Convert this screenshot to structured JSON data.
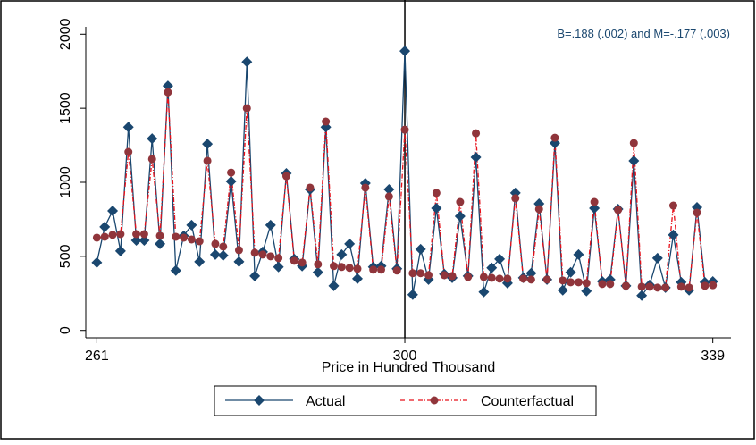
{
  "chart_data": {
    "type": "line",
    "annotation": "B=.188 (.002) and M=-.177 (.003)",
    "x_label": "Price in Hundred Thousand",
    "x": [
      261,
      262,
      263,
      264,
      265,
      266,
      267,
      268,
      269,
      270,
      271,
      272,
      273,
      274,
      275,
      276,
      277,
      278,
      279,
      280,
      281,
      282,
      283,
      284,
      285,
      286,
      287,
      288,
      289,
      290,
      291,
      292,
      293,
      294,
      295,
      296,
      297,
      298,
      299,
      300,
      301,
      302,
      303,
      304,
      305,
      306,
      307,
      308,
      309,
      310,
      311,
      312,
      313,
      314,
      315,
      316,
      317,
      318,
      319,
      320,
      321,
      322,
      323,
      324,
      325,
      326,
      327,
      328,
      329,
      330,
      331,
      332,
      333,
      334,
      335,
      336,
      337,
      338,
      339
    ],
    "series": [
      {
        "name": "Actual",
        "color": "#1a476f",
        "marker": "diamond",
        "dash": "none",
        "values": [
          458,
          699,
          807,
          536,
          1373,
          608,
          608,
          1295,
          584,
          1651,
          404,
          639,
          711,
          464,
          1259,
          512,
          506,
          1006,
          464,
          1813,
          367,
          530,
          711,
          428,
          1060,
          482,
          434,
          952,
          392,
          1373,
          301,
          512,
          584,
          349,
          994,
          428,
          434,
          952,
          416,
          1886,
          241,
          548,
          343,
          825,
          380,
          355,
          771,
          367,
          1169,
          259,
          422,
          482,
          319,
          928,
          355,
          386,
          855,
          343,
          1265,
          271,
          392,
          512,
          265,
          825,
          331,
          343,
          819,
          301,
          1145,
          235,
          307,
          488,
          289,
          645,
          325,
          271,
          831,
          325,
          330
        ]
      },
      {
        "name": "Counterfactual",
        "color": "#e8101a",
        "marker_color": "#90353b",
        "marker": "circle",
        "dash": "5,2,1,2",
        "values": [
          626,
          632,
          645,
          650,
          1205,
          650,
          650,
          1157,
          639,
          1608,
          632,
          626,
          614,
          602,
          1145,
          584,
          566,
          1066,
          542,
          1500,
          524,
          512,
          500,
          488,
          1042,
          470,
          458,
          964,
          446,
          1410,
          434,
          428,
          422,
          416,
          964,
          410,
          410,
          904,
          404,
          1355,
          386,
          386,
          373,
          928,
          373,
          367,
          867,
          361,
          1331,
          361,
          355,
          349,
          349,
          892,
          349,
          343,
          819,
          343,
          1301,
          337,
          325,
          325,
          319,
          867,
          313,
          313,
          813,
          301,
          1265,
          295,
          295,
          289,
          289,
          843,
          295,
          289,
          795,
          301,
          305
        ]
      }
    ],
    "vline": 300,
    "xlim": [
      259.6,
      341.3
    ],
    "ylim": [
      -50,
      2050
    ],
    "xticks": [
      261,
      300,
      339
    ],
    "yticks": [
      0,
      500,
      1000,
      1500,
      2000
    ],
    "grid": false,
    "legend": "bottom"
  }
}
